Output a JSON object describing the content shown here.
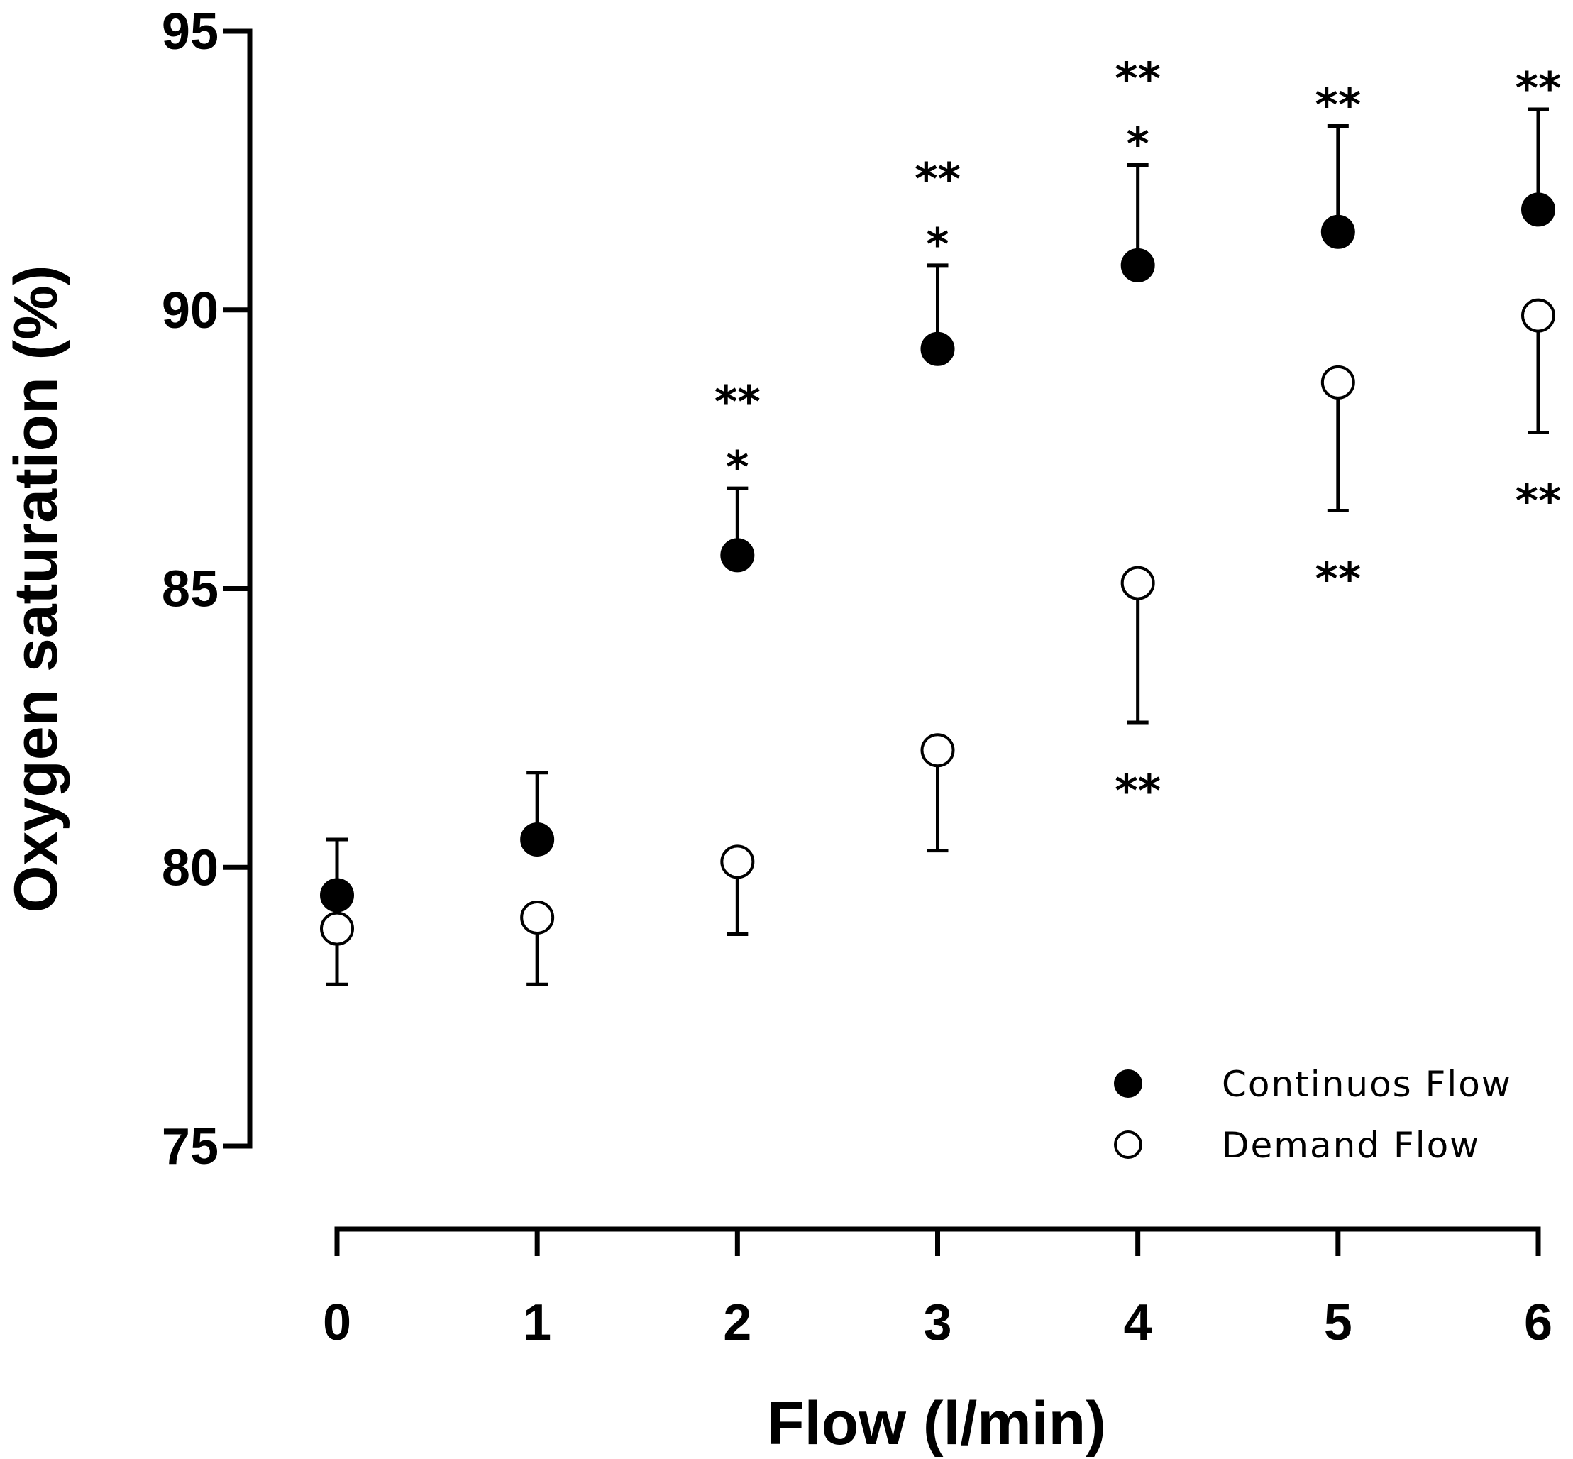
{
  "chart_data": {
    "type": "scatter",
    "title": "",
    "xlabel": "Flow (l/min)",
    "ylabel": "Oxygen saturation (%)",
    "x": [
      0,
      1,
      2,
      3,
      4,
      5,
      6
    ],
    "xlim": [
      0,
      6
    ],
    "ylim": [
      75,
      95
    ],
    "x_ticks": [
      "0",
      "1",
      "2",
      "3",
      "4",
      "5",
      "6"
    ],
    "y_ticks": [
      "75",
      "80",
      "85",
      "90",
      "95"
    ],
    "grid": false,
    "legend_position": "bottom-right",
    "series": [
      {
        "name": "Continuos Flow",
        "marker": "filled-circle",
        "color": "#000000",
        "values": [
          79.5,
          80.5,
          85.6,
          89.3,
          90.8,
          91.4,
          91.8
        ],
        "error_upper": [
          80.5,
          81.7,
          86.8,
          90.8,
          92.6,
          93.3,
          93.6
        ],
        "error_direction": "up",
        "annotations": [
          {
            "x": 2,
            "lines": [
              "**",
              "*"
            ]
          },
          {
            "x": 3,
            "lines": [
              "**",
              "*"
            ]
          },
          {
            "x": 4,
            "lines": [
              "**",
              "*"
            ]
          },
          {
            "x": 5,
            "lines": [
              "**"
            ]
          },
          {
            "x": 6,
            "lines": [
              "**"
            ]
          }
        ]
      },
      {
        "name": "Demand Flow",
        "marker": "open-circle",
        "color": "#ffffff",
        "values": [
          78.9,
          79.1,
          80.1,
          82.1,
          85.1,
          88.7,
          89.9
        ],
        "error_lower": [
          77.9,
          77.9,
          78.8,
          80.3,
          82.6,
          86.4,
          87.8
        ],
        "error_direction": "down",
        "annotations": [
          {
            "x": 4,
            "lines": [
              "**"
            ]
          },
          {
            "x": 5,
            "lines": [
              "**"
            ]
          },
          {
            "x": 6,
            "lines": [
              "**"
            ]
          }
        ]
      }
    ]
  }
}
